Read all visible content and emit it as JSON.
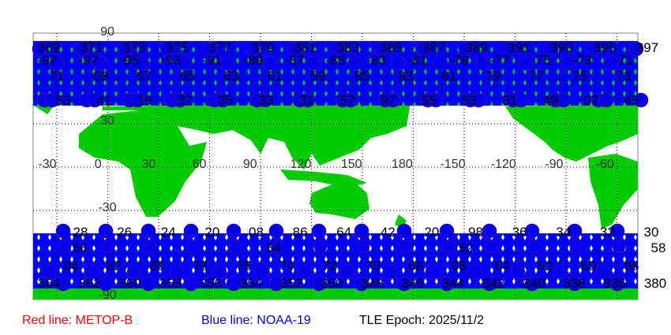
{
  "map": {
    "colors": {
      "land": "#00cc00",
      "ocean": "#ffffff",
      "track_noaa19": "#0000ff",
      "track_metopb": "#ff0000",
      "grid": "#000000",
      "frame": "#aaaaaa"
    },
    "lon_ticks": [
      "-30",
      "0",
      "30",
      "60",
      "90",
      "120",
      "150",
      "180",
      "-150",
      "-120",
      "-90",
      "-60"
    ],
    "lat_ticks": [
      "90",
      "30",
      "-30",
      "-90"
    ],
    "north_labels": {
      "row1": [
        "369",
        "371",
        "373",
        "375",
        "377",
        "379",
        "381",
        "383",
        "385",
        "387",
        "389",
        "391",
        "393",
        "395",
        "397"
      ],
      "row2": [
        "-97",
        "-97",
        "-95",
        "-93",
        "-91",
        "-89",
        "-87",
        "-85",
        "-83",
        "-81",
        "-79",
        "-77",
        "-75",
        "-73",
        "-71"
      ],
      "row3": [
        "71",
        "69",
        "67",
        "65",
        "63",
        "61",
        "59",
        "85",
        "83",
        "81",
        "79",
        "77",
        "75",
        "73"
      ],
      "row4": [
        "53",
        "41",
        "19",
        "37",
        "35",
        "33",
        "31",
        "57",
        "97",
        "55",
        "53",
        "31",
        "49",
        "07",
        "45"
      ]
    },
    "south_labels": {
      "row1": [
        "28",
        "26",
        "24",
        "20",
        "08",
        "86",
        "64",
        "42",
        "20",
        "98",
        "36",
        "34",
        "32",
        "30"
      ],
      "row2": [
        "56",
        "54",
        "52",
        "58"
      ],
      "row3": [
        "84",
        "82",
        "80",
        "78",
        "76",
        "74",
        "72",
        "70",
        "68",
        "66",
        "64",
        "62",
        "60",
        "86"
      ],
      "row4": [
        "364",
        "362",
        "360",
        "358",
        "356",
        "354",
        "352",
        "350",
        "348",
        "346",
        "344",
        "342",
        "340",
        "338",
        "336",
        "380"
      ]
    }
  },
  "legend": {
    "red": "Red line: METOP-B",
    "blue": "Blue line: NOAA-19",
    "epoch": "TLE Epoch: 2025/11/2"
  }
}
